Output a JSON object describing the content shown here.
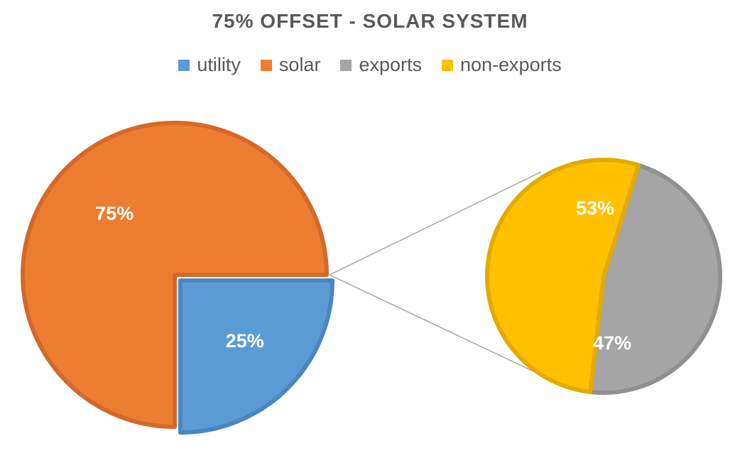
{
  "chart_data": {
    "type": "bar-of-pie",
    "title": "75% OFFSET - SOLAR SYSTEM",
    "legend": [
      "utility",
      "solar",
      "exports",
      "non-exports"
    ],
    "legend_position": "top",
    "main_pie": [
      {
        "name": "utility",
        "value": 25,
        "label": "25%",
        "color": "#5b9bd5",
        "edge": "#4a86c0"
      },
      {
        "name": "solar",
        "value": 75,
        "label": "75%",
        "color": "#ed7d31",
        "edge": "#d4692a"
      }
    ],
    "secondary_pie": [
      {
        "name": "exports",
        "value": 47,
        "label": "47%",
        "color": "#a5a5a5",
        "edge": "#909090"
      },
      {
        "name": "non-exports",
        "value": 53,
        "label": "53%",
        "color": "#ffc000",
        "edge": "#e3aa00"
      }
    ],
    "exploded_from_main": "solar"
  }
}
